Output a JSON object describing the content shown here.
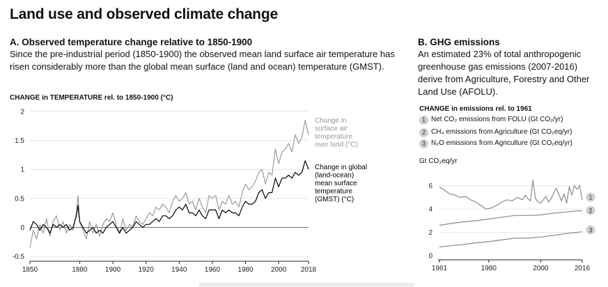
{
  "title": "Land use and observed climate change",
  "panel_a": {
    "heading": "A. Observed temperature change relative to 1850-1900",
    "description": "Since the pre-industrial period (1850-1900) the observed mean land surface air temperature has risen considerably more than the global mean surface (land and ocean) temperature (GMST).",
    "axis_title": "CHANGE in TEMPERATURE rel. to 1850-1900 (°C)"
  },
  "panel_b": {
    "heading": "B. GHG emissions",
    "description": "An estimated 23% of total anthropogenic greenhouse gas emissions (2007-2016) derive from Agriculture, Forestry and Other Land Use (AFOLU).",
    "axis_title": "CHANGE in emissions rel. to 1961",
    "legend": [
      {
        "num": "1",
        "text": "Net CO₂ emissions from FOLU (Gt CO₂/yr)"
      },
      {
        "num": "2",
        "text": "CH₄ emissions from Agriculture (Gt CO₂eq/yr)"
      },
      {
        "num": "3",
        "text": "N₂O emissions from Agriculture (Gt CO₂eq/yr)"
      }
    ],
    "unit_label": "Gt CO₂eq/yr"
  },
  "colors": {
    "land": "#9a9a9a",
    "gmst": "#000000",
    "series_b": "#8a8a8a",
    "badge": "#cfcfcf",
    "axis": "#222222"
  },
  "chart_data": [
    {
      "type": "line",
      "x_range": [
        1850,
        2018
      ],
      "ylim": [
        -0.5,
        2
      ],
      "x_ticks": [
        "1850",
        "1880",
        "1900",
        "1920",
        "1940",
        "1960",
        "1980",
        "2000",
        "2018"
      ],
      "y_ticks": [
        "2",
        "1.5",
        "1",
        "0.5",
        "0",
        "-0.5"
      ],
      "series": [
        {
          "name": "Change in surface air temperature over land (°C)",
          "label_lines": [
            "Change in",
            "surface air",
            "temperature",
            "over land (°C)"
          ],
          "color": "#9a9a9a",
          "points": [
            [
              1850,
              -0.35
            ],
            [
              1852,
              -0.05
            ],
            [
              1854,
              -0.2
            ],
            [
              1856,
              0.05
            ],
            [
              1858,
              -0.1
            ],
            [
              1860,
              0.15
            ],
            [
              1862,
              -0.15
            ],
            [
              1864,
              0.1
            ],
            [
              1866,
              0.2
            ],
            [
              1868,
              -0.05
            ],
            [
              1870,
              0.1
            ],
            [
              1872,
              -0.1
            ],
            [
              1874,
              0.05
            ],
            [
              1876,
              -0.05
            ],
            [
              1878,
              0.25
            ],
            [
              1879,
              0.55
            ],
            [
              1880,
              0.1
            ],
            [
              1882,
              -0.05
            ],
            [
              1884,
              -0.2
            ],
            [
              1886,
              0.1
            ],
            [
              1888,
              -0.1
            ],
            [
              1890,
              0.05
            ],
            [
              1892,
              -0.15
            ],
            [
              1894,
              0.05
            ],
            [
              1896,
              0.15
            ],
            [
              1898,
              0.1
            ],
            [
              1900,
              0.25
            ],
            [
              1902,
              0.05
            ],
            [
              1904,
              -0.1
            ],
            [
              1906,
              0.15
            ],
            [
              1908,
              -0.05
            ],
            [
              1910,
              0.05
            ],
            [
              1912,
              0.0
            ],
            [
              1914,
              0.2
            ],
            [
              1916,
              0.1
            ],
            [
              1918,
              0.05
            ],
            [
              1920,
              0.15
            ],
            [
              1922,
              0.25
            ],
            [
              1924,
              0.2
            ],
            [
              1926,
              0.35
            ],
            [
              1928,
              0.3
            ],
            [
              1930,
              0.4
            ],
            [
              1932,
              0.35
            ],
            [
              1934,
              0.25
            ],
            [
              1936,
              0.45
            ],
            [
              1938,
              0.55
            ],
            [
              1940,
              0.45
            ],
            [
              1942,
              0.5
            ],
            [
              1944,
              0.6
            ],
            [
              1946,
              0.4
            ],
            [
              1948,
              0.45
            ],
            [
              1950,
              0.3
            ],
            [
              1952,
              0.5
            ],
            [
              1954,
              0.35
            ],
            [
              1956,
              0.25
            ],
            [
              1958,
              0.55
            ],
            [
              1960,
              0.5
            ],
            [
              1962,
              0.55
            ],
            [
              1964,
              0.3
            ],
            [
              1966,
              0.45
            ],
            [
              1968,
              0.4
            ],
            [
              1970,
              0.55
            ],
            [
              1972,
              0.4
            ],
            [
              1974,
              0.45
            ],
            [
              1976,
              0.35
            ],
            [
              1978,
              0.6
            ],
            [
              1980,
              0.75
            ],
            [
              1982,
              0.65
            ],
            [
              1984,
              0.7
            ],
            [
              1986,
              0.8
            ],
            [
              1988,
              0.95
            ],
            [
              1990,
              1.0
            ],
            [
              1992,
              0.75
            ],
            [
              1994,
              0.95
            ],
            [
              1996,
              0.9
            ],
            [
              1998,
              1.35
            ],
            [
              2000,
              1.1
            ],
            [
              2002,
              1.3
            ],
            [
              2004,
              1.35
            ],
            [
              2006,
              1.45
            ],
            [
              2008,
              1.3
            ],
            [
              2010,
              1.6
            ],
            [
              2012,
              1.45
            ],
            [
              2014,
              1.55
            ],
            [
              2016,
              1.85
            ],
            [
              2018,
              1.6
            ]
          ]
        },
        {
          "name": "Change in global (land-ocean) mean surface temperature (GMST) (°C)",
          "label_lines": [
            "Change in global",
            "(land-ocean)",
            "mean surface",
            "temperature",
            "(GMST) (°C)"
          ],
          "color": "#000000",
          "points": [
            [
              1850,
              -0.05
            ],
            [
              1852,
              0.1
            ],
            [
              1854,
              0.05
            ],
            [
              1856,
              -0.05
            ],
            [
              1858,
              0.05
            ],
            [
              1860,
              0.0
            ],
            [
              1862,
              -0.1
            ],
            [
              1864,
              0.05
            ],
            [
              1866,
              0.0
            ],
            [
              1868,
              0.05
            ],
            [
              1870,
              0.0
            ],
            [
              1872,
              0.05
            ],
            [
              1874,
              -0.05
            ],
            [
              1876,
              0.0
            ],
            [
              1878,
              0.2
            ],
            [
              1879,
              0.38
            ],
            [
              1880,
              0.1
            ],
            [
              1882,
              0.0
            ],
            [
              1884,
              -0.1
            ],
            [
              1886,
              -0.05
            ],
            [
              1888,
              0.0
            ],
            [
              1890,
              -0.1
            ],
            [
              1892,
              -0.05
            ],
            [
              1894,
              -0.1
            ],
            [
              1896,
              0.0
            ],
            [
              1898,
              0.05
            ],
            [
              1900,
              0.1
            ],
            [
              1902,
              0.0
            ],
            [
              1904,
              -0.1
            ],
            [
              1906,
              0.0
            ],
            [
              1908,
              -0.1
            ],
            [
              1910,
              -0.05
            ],
            [
              1912,
              0.0
            ],
            [
              1914,
              0.1
            ],
            [
              1916,
              0.05
            ],
            [
              1918,
              0.0
            ],
            [
              1920,
              0.05
            ],
            [
              1922,
              0.05
            ],
            [
              1924,
              0.1
            ],
            [
              1926,
              0.15
            ],
            [
              1928,
              0.1
            ],
            [
              1930,
              0.2
            ],
            [
              1932,
              0.2
            ],
            [
              1934,
              0.15
            ],
            [
              1936,
              0.2
            ],
            [
              1938,
              0.3
            ],
            [
              1940,
              0.35
            ],
            [
              1942,
              0.3
            ],
            [
              1944,
              0.4
            ],
            [
              1946,
              0.25
            ],
            [
              1948,
              0.25
            ],
            [
              1950,
              0.2
            ],
            [
              1952,
              0.3
            ],
            [
              1954,
              0.2
            ],
            [
              1956,
              0.15
            ],
            [
              1958,
              0.3
            ],
            [
              1960,
              0.3
            ],
            [
              1962,
              0.3
            ],
            [
              1964,
              0.15
            ],
            [
              1966,
              0.3
            ],
            [
              1968,
              0.25
            ],
            [
              1970,
              0.3
            ],
            [
              1972,
              0.25
            ],
            [
              1974,
              0.25
            ],
            [
              1976,
              0.2
            ],
            [
              1978,
              0.35
            ],
            [
              1980,
              0.45
            ],
            [
              1982,
              0.4
            ],
            [
              1984,
              0.4
            ],
            [
              1986,
              0.45
            ],
            [
              1988,
              0.6
            ],
            [
              1990,
              0.65
            ],
            [
              1992,
              0.5
            ],
            [
              1994,
              0.6
            ],
            [
              1996,
              0.6
            ],
            [
              1998,
              0.85
            ],
            [
              2000,
              0.7
            ],
            [
              2002,
              0.85
            ],
            [
              2004,
              0.85
            ],
            [
              2006,
              0.9
            ],
            [
              2008,
              0.85
            ],
            [
              2010,
              0.95
            ],
            [
              2012,
              0.9
            ],
            [
              2014,
              0.95
            ],
            [
              2016,
              1.15
            ],
            [
              2018,
              1.0
            ]
          ]
        }
      ]
    },
    {
      "type": "line",
      "x_range": [
        1961,
        2016
      ],
      "ylim": [
        0,
        7
      ],
      "x_ticks": [
        "1961",
        "1980",
        "2000",
        "2016"
      ],
      "y_ticks": [
        "6",
        "4",
        "2",
        "0"
      ],
      "series": [
        {
          "name": "1",
          "points": [
            [
              1961,
              5.9
            ],
            [
              1963,
              5.6
            ],
            [
              1965,
              5.3
            ],
            [
              1967,
              5.2
            ],
            [
              1969,
              5.0
            ],
            [
              1971,
              5.1
            ],
            [
              1973,
              4.8
            ],
            [
              1975,
              4.6
            ],
            [
              1977,
              4.3
            ],
            [
              1979,
              4.0
            ],
            [
              1981,
              4.1
            ],
            [
              1983,
              4.3
            ],
            [
              1985,
              4.6
            ],
            [
              1987,
              4.8
            ],
            [
              1989,
              4.7
            ],
            [
              1991,
              5.0
            ],
            [
              1993,
              4.8
            ],
            [
              1994,
              5.2
            ],
            [
              1995,
              4.9
            ],
            [
              1996,
              4.7
            ],
            [
              1997,
              6.5
            ],
            [
              1998,
              4.9
            ],
            [
              1999,
              4.6
            ],
            [
              2000,
              4.5
            ],
            [
              2002,
              5.1
            ],
            [
              2003,
              4.6
            ],
            [
              2004,
              4.9
            ],
            [
              2006,
              5.8
            ],
            [
              2008,
              4.7
            ],
            [
              2009,
              5.3
            ],
            [
              2010,
              4.5
            ],
            [
              2011,
              5.9
            ],
            [
              2012,
              5.2
            ],
            [
              2013,
              6.0
            ],
            [
              2014,
              5.7
            ],
            [
              2015,
              6.0
            ],
            [
              2016,
              4.8
            ]
          ]
        },
        {
          "name": "2",
          "points": [
            [
              1961,
              2.6
            ],
            [
              1965,
              2.75
            ],
            [
              1970,
              2.9
            ],
            [
              1975,
              3.0
            ],
            [
              1980,
              3.15
            ],
            [
              1985,
              3.3
            ],
            [
              1990,
              3.45
            ],
            [
              1995,
              3.45
            ],
            [
              2000,
              3.5
            ],
            [
              2005,
              3.65
            ],
            [
              2010,
              3.75
            ],
            [
              2014,
              3.85
            ],
            [
              2016,
              3.85
            ]
          ]
        },
        {
          "name": "3",
          "points": [
            [
              1961,
              0.75
            ],
            [
              1965,
              0.85
            ],
            [
              1970,
              0.95
            ],
            [
              1975,
              1.1
            ],
            [
              1980,
              1.2
            ],
            [
              1985,
              1.35
            ],
            [
              1990,
              1.5
            ],
            [
              1995,
              1.5
            ],
            [
              2000,
              1.6
            ],
            [
              2005,
              1.75
            ],
            [
              2010,
              1.9
            ],
            [
              2014,
              2.0
            ],
            [
              2016,
              2.05
            ]
          ]
        }
      ]
    }
  ]
}
